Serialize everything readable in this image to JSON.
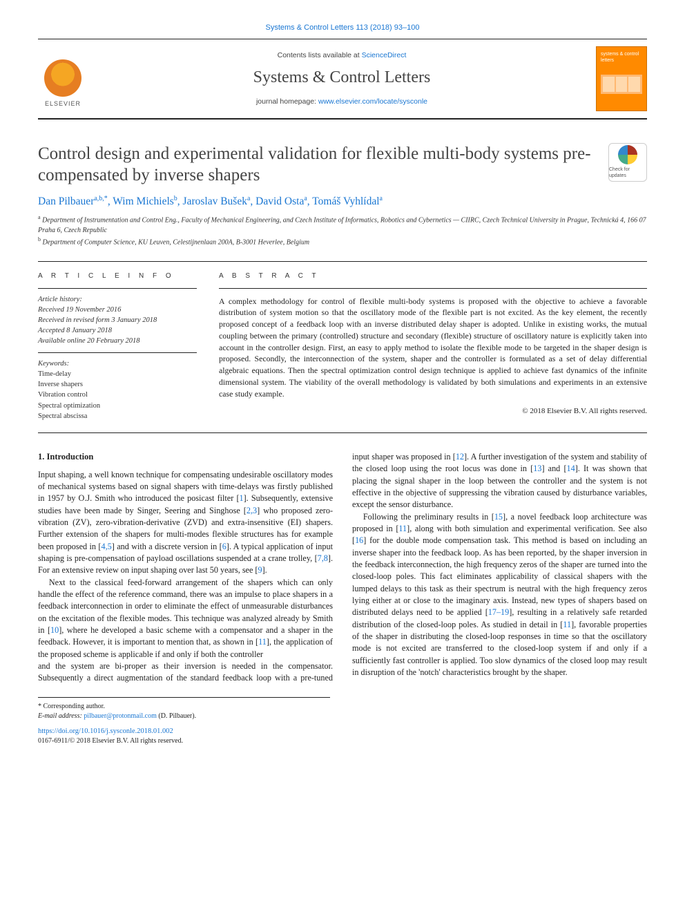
{
  "citation_line": "Systems & Control Letters 113 (2018) 93–100",
  "banner": {
    "contents_prefix": "Contents lists available at ",
    "contents_link": "ScienceDirect",
    "journal_name": "Systems & Control Letters",
    "homepage_prefix": "journal homepage: ",
    "homepage_url": "www.elsevier.com/locate/sysconle",
    "publisher": "ELSEVIER",
    "cover_title": "systems & control letters"
  },
  "title": "Control design and experimental validation for flexible multi-body systems pre-compensated by inverse shapers",
  "updates_badge": "Check for updates",
  "authors_html": "Dan Pilbauer <sup>a,b,*</sup>, Wim Michiels <sup>b</sup>, Jaroslav Bušek <sup>a</sup>, David Osta <sup>a</sup>, Tomáš Vyhlídal <sup>a</sup>",
  "authors": [
    {
      "name": "Dan Pilbauer",
      "aff": "a,b,*"
    },
    {
      "name": "Wim Michiels",
      "aff": "b"
    },
    {
      "name": "Jaroslav Bušek",
      "aff": "a"
    },
    {
      "name": "David Osta",
      "aff": "a"
    },
    {
      "name": "Tomáš Vyhlídal",
      "aff": "a"
    }
  ],
  "affiliations": {
    "a": "Department of Instrumentation and Control Eng., Faculty of Mechanical Engineering, and Czech Institute of Informatics, Robotics and Cybernetics — CIIRC, Czech Technical University in Prague, Technická 4, 166 07 Praha 6, Czech Republic",
    "b": "Department of Computer Science, KU Leuven, Celestijnenlaan 200A, B-3001 Heverlee, Belgium"
  },
  "article_info": {
    "heading": "A R T I C L E   I N F O",
    "history_label": "Article history:",
    "history": [
      "Received 19 November 2016",
      "Received in revised form 3 January 2018",
      "Accepted 8 January 2018",
      "Available online 20 February 2018"
    ],
    "keywords_label": "Keywords:",
    "keywords": [
      "Time-delay",
      "Inverse shapers",
      "Vibration control",
      "Spectral optimization",
      "Spectral abscissa"
    ]
  },
  "abstract": {
    "heading": "A B S T R A C T",
    "text": "A complex methodology for control of flexible multi-body systems is proposed with the objective to achieve a favorable distribution of system motion so that the oscillatory mode of the flexible part is not excited. As the key element, the recently proposed concept of a feedback loop with an inverse distributed delay shaper is adopted. Unlike in existing works, the mutual coupling between the primary (controlled) structure and secondary (flexible) structure of oscillatory nature is explicitly taken into account in the controller design. First, an easy to apply method to isolate the flexible mode to be targeted in the shaper design is proposed. Secondly, the interconnection of the system, shaper and the controller is formulated as a set of delay differential algebraic equations. Then the spectral optimization control design technique is applied to achieve fast dynamics of the infinite dimensional system. The viability of the overall methodology is validated by both simulations and experiments in an extensive case study example.",
    "copyright": "© 2018 Elsevier B.V. All rights reserved."
  },
  "section1_heading": "1. Introduction",
  "body": {
    "p1": "Input shaping, a well known technique for compensating undesirable oscillatory modes of mechanical systems based on signal shapers with time-delays was firstly published in 1957 by O.J. Smith who introduced the posicast filter [1]. Subsequently, extensive studies have been made by Singer, Seering and Singhose [2,3] who proposed zero-vibration (ZV), zero-vibration-derivative (ZVD) and extra-insensitive (EI) shapers. Further extension of the shapers for multi-modes flexible structures has for example been proposed in [4,5] and with a discrete version in [6]. A typical application of input shaping is pre-compensation of payload oscillations suspended at a crane trolley, [7,8]. For an extensive review on input shaping over last 50 years, see [9].",
    "p2": "Next to the classical feed-forward arrangement of the shapers which can only handle the effect of the reference command, there was an impulse to place shapers in a feedback interconnection in order to eliminate the effect of unmeasurable disturbances on the excitation of the flexible modes. This technique was analyzed already by Smith in [10], where he developed a basic scheme with a compensator and a shaper in the feedback. However, it is important to mention that, as shown in [11], the application of the proposed scheme is applicable if and only if both the controller",
    "p3": "and the system are bi-proper as their inversion is needed in the compensator. Subsequently a direct augmentation of the standard feedback loop with a pre-tuned input shaper was proposed in [12]. A further investigation of the system and stability of the closed loop using the root locus was done in [13] and [14]. It was shown that placing the signal shaper in the loop between the controller and the system is not effective in the objective of suppressing the vibration caused by disturbance variables, except the sensor disturbance.",
    "p4": "Following the preliminary results in [15], a novel feedback loop architecture was proposed in [11], along with both simulation and experimental verification. See also [16] for the double mode compensation task. This method is based on including an inverse shaper into the feedback loop. As has been reported, by the shaper inversion in the feedback interconnection, the high frequency zeros of the shaper are turned into the closed-loop poles. This fact eliminates applicability of classical shapers with the lumped delays to this task as their spectrum is neutral with the high frequency zeros lying either at or close to the imaginary axis. Instead, new types of shapers based on distributed delays need to be applied [17–19], resulting in a relatively safe retarded distribution of the closed-loop poles. As studied in detail in [11], favorable properties of the shaper in distributing the closed-loop responses in time so that the oscillatory mode is not excited are transferred to the closed-loop system if and only if a sufficiently fast controller is applied. Too slow dynamics of the closed loop may result in disruption of the 'notch' characteristics brought by the shaper."
  },
  "footnote": {
    "corr": "* Corresponding author.",
    "email_label": "E-mail address:",
    "email": "pilbauer@protonmail.com",
    "email_who": "(D. Pilbauer)."
  },
  "doi": {
    "url": "https://doi.org/10.1016/j.sysconle.2018.01.002",
    "issn_cp": "0167-6911/© 2018 Elsevier B.V. All rights reserved."
  },
  "colors": {
    "link": "#1976d2",
    "text": "#222222",
    "cover_bg": "#ff8a00",
    "rule": "#222222"
  },
  "typography": {
    "title_pt": 25,
    "authors_pt": 15.5,
    "body_pt": 12.2,
    "abstract_pt": 11.8,
    "affil_pt": 10,
    "info_pt": 10.5
  }
}
